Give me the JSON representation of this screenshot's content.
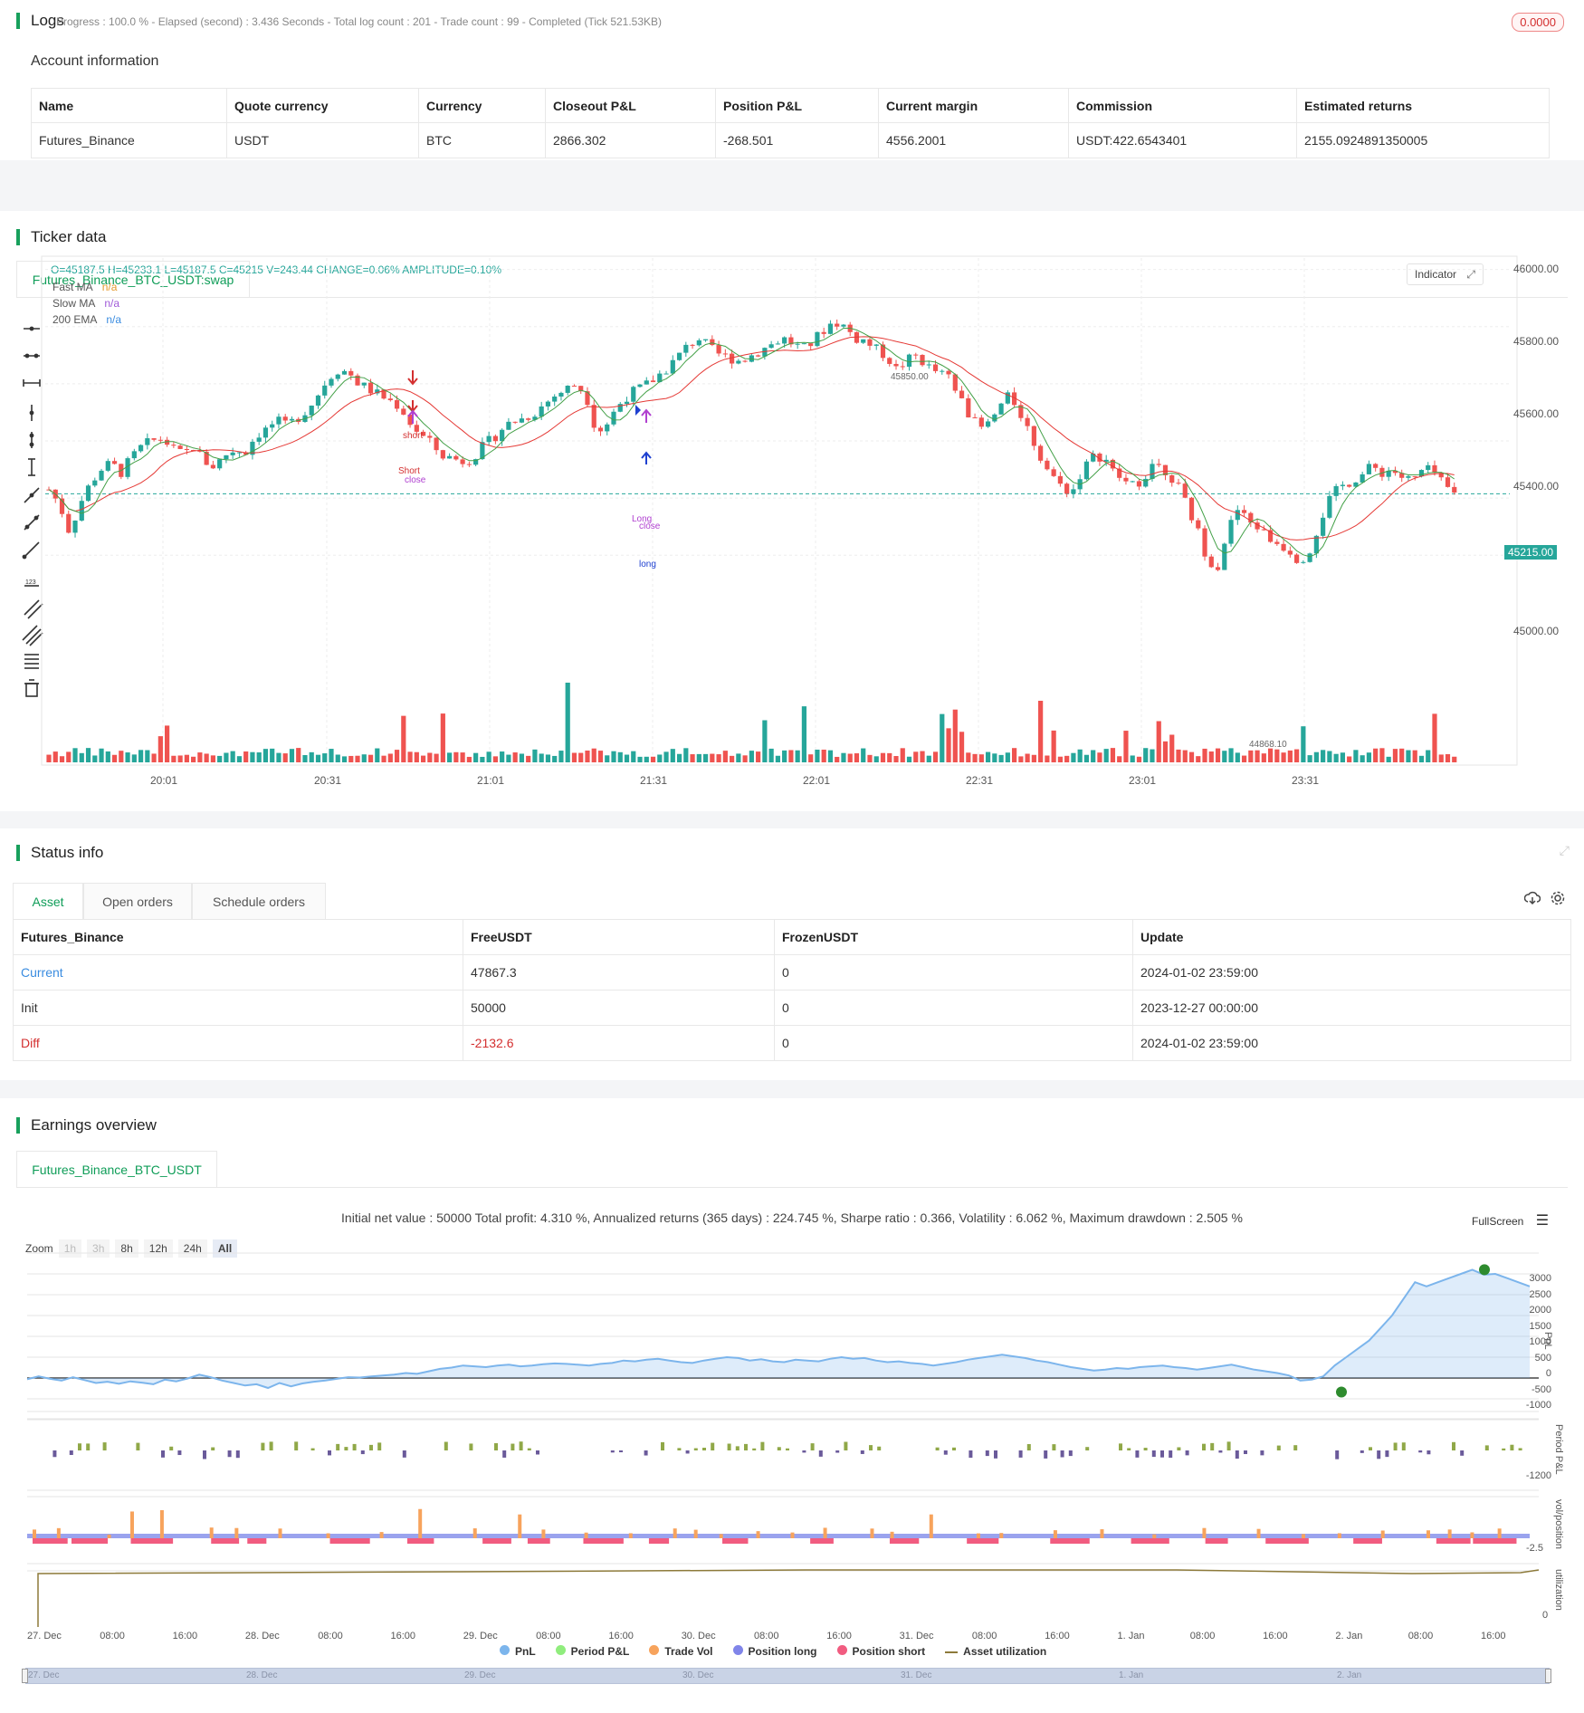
{
  "logs": {
    "title": "Logs",
    "summary": "Progress : 100.0 % - Elapsed (second) : 3.436  Seconds - Total log count : 201 - Trade count : 99 - Completed (Tick 521.53KB)",
    "badge": "0.0000",
    "account_title": "Account information",
    "columns": [
      "Name",
      "Quote currency",
      "Currency",
      "Closeout P&L",
      "Position P&L",
      "Current margin",
      "Commission",
      "Estimated returns"
    ],
    "row": [
      "Futures_Binance",
      "USDT",
      "BTC",
      "2866.302",
      "-268.501",
      "4556.2001",
      "USDT:422.6543401",
      "2155.0924891350005"
    ]
  },
  "ticker": {
    "title": "Ticker data",
    "tab": "Futures_Binance_BTC_USDT:swap",
    "ohlc": "O=45187.5 H=45233.1 L=45187.5 C=45215 V=243.44 CHANGE=0.06% AMPLITUDE=0.10%",
    "legend": [
      {
        "name": "Fast MA",
        "value": "n/a",
        "color": "#e69a2e"
      },
      {
        "name": "Slow MA",
        "value": "n/a",
        "color": "#a05ad8"
      },
      {
        "name": "200 EMA",
        "value": "n/a",
        "color": "#3a8ce0"
      }
    ],
    "indicator_btn": "Indicator",
    "price_ticks": [
      "46000.00",
      "45800.00",
      "45600.00",
      "45400.00",
      "45000.00"
    ],
    "time_ticks": [
      "20:01",
      "20:31",
      "21:01",
      "21:31",
      "22:01",
      "22:31",
      "23:01",
      "23:31"
    ],
    "last_price": "45215.00",
    "high_label": "45850.00",
    "low_label": "44868.10",
    "signals": {
      "short": "short",
      "short_close": "Short",
      "close1": "close",
      "long": "long",
      "long_close": "Long",
      "close2": "close"
    }
  },
  "chart_data": {
    "type": "candlestick",
    "ylim": [
      44760,
      46040
    ],
    "close_path": [
      45230,
      45180,
      45080,
      45180,
      45250,
      45300,
      45320,
      45290,
      45340,
      45380,
      45400,
      45410,
      45370,
      45350,
      45380,
      45330,
      45310,
      45350,
      45370,
      45360,
      45420,
      45440,
      45470,
      45450,
      45480,
      45510,
      45560,
      45620,
      45650,
      45640,
      45600,
      45580,
      45560,
      45540,
      45520,
      45460,
      45420,
      45390,
      45350,
      45340,
      45330,
      45340,
      45380,
      45410,
      45450,
      45470,
      45480,
      45500,
      45530,
      45560,
      45580,
      45600,
      45560,
      45430,
      45460,
      45520,
      45560,
      45580,
      45600,
      45630,
      45660,
      45700,
      45740,
      45760,
      45720,
      45700,
      45690,
      45680,
      45700,
      45720,
      45740,
      45760,
      45740,
      45720,
      45750,
      45790,
      45820,
      45800,
      45760,
      45750,
      45720,
      45700,
      45650,
      45680,
      45700,
      45660,
      45640,
      45620,
      45560,
      45500,
      45440,
      45460,
      45520,
      45560,
      45500,
      45420,
      45340,
      45280,
      45240,
      45220,
      45300,
      45340,
      45350,
      45290,
      45260,
      45240,
      45280,
      45320,
      45300,
      45260,
      45180,
      45100,
      45000,
      44950,
      45080,
      45160,
      45120,
      45100,
      45060,
      45040,
      45020,
      44980,
      45020,
      45120,
      45200,
      45240,
      45260,
      45280,
      45310,
      45290,
      45300,
      45270,
      45260,
      45300,
      45290,
      45240,
      45215
    ]
  },
  "status": {
    "title": "Status info",
    "tabs": [
      "Asset",
      "Open orders",
      "Schedule orders"
    ],
    "columns": [
      "Futures_Binance",
      "FreeUSDT",
      "FrozenUSDT",
      "Update"
    ],
    "rows": [
      [
        "Current",
        "47867.3",
        "0",
        "2024-01-02 23:59:00"
      ],
      [
        "Init",
        "50000",
        "0",
        "2023-12-27 00:00:00"
      ],
      [
        "Diff",
        "-2132.6",
        "0",
        "2024-01-02 23:59:00"
      ]
    ]
  },
  "earnings": {
    "title": "Earnings overview",
    "tab": "Futures_Binance_BTC_USDT",
    "summary": "Initial net value : 50000 Total profit: 4.310 %, Annualized returns (365 days) : 224.745 %, Sharpe ratio : 0.366, Volatility : 6.062 %, Maximum drawdown : 2.505 %",
    "fullscreen": "FullScreen",
    "zoom_label": "Zoom",
    "zoom_options": [
      "1h",
      "3h",
      "8h",
      "12h",
      "24h",
      "All"
    ],
    "pnl_ticks": [
      "3000",
      "2500",
      "2000",
      "1500",
      "1000",
      "500",
      "0",
      "-500",
      "-1000"
    ],
    "axis_labels": [
      "PnL",
      "Period P&L",
      "vol/position",
      "utilization"
    ],
    "period_tick": "-1200",
    "vol_tick": "-2.5",
    "util_tick": "0",
    "time_ticks": [
      "27. Dec",
      "08:00",
      "16:00",
      "28. Dec",
      "08:00",
      "16:00",
      "29. Dec",
      "08:00",
      "16:00",
      "30. Dec",
      "08:00",
      "16:00",
      "31. Dec",
      "08:00",
      "16:00",
      "1. Jan",
      "08:00",
      "16:00",
      "2. Jan",
      "08:00",
      "16:00"
    ],
    "nav_ticks": [
      "27. Dec",
      "28. Dec",
      "29. Dec",
      "30. Dec",
      "31. Dec",
      "1. Jan",
      "2. Jan"
    ],
    "legend": [
      {
        "name": "PnL",
        "color": "#7cb5ec"
      },
      {
        "name": "Period P&L",
        "color": "#90ed7d"
      },
      {
        "name": "Trade Vol",
        "color": "#f7a35c"
      },
      {
        "name": "Position long",
        "color": "#8085e9"
      },
      {
        "name": "Position short",
        "color": "#f15c80"
      },
      {
        "name": "Asset utilization",
        "color": "#8d7a3a"
      }
    ],
    "pnl_series": [
      -30,
      40,
      -20,
      -60,
      20,
      -50,
      -120,
      -90,
      -140,
      -80,
      -110,
      -150,
      -40,
      -80,
      -10,
      80,
      20,
      -60,
      -120,
      -180,
      -150,
      -240,
      -120,
      -200,
      -130,
      -90,
      -60,
      -20,
      20,
      10,
      40,
      60,
      80,
      120,
      100,
      160,
      220,
      250,
      300,
      280,
      260,
      300,
      320,
      280,
      300,
      330,
      350,
      340,
      320,
      300,
      340,
      360,
      420,
      400,
      440,
      460,
      420,
      380,
      360,
      420,
      460,
      500,
      480,
      420,
      450,
      400,
      380,
      440,
      420,
      400,
      460,
      500,
      460,
      480,
      420,
      380,
      400,
      360,
      340,
      300,
      340,
      380,
      440,
      480,
      520,
      560,
      520,
      480,
      420,
      380,
      320,
      260,
      220,
      180,
      200,
      240,
      220,
      260,
      280,
      300,
      260,
      240,
      200,
      240,
      280,
      320,
      260,
      200,
      160,
      120,
      60,
      -60,
      -40,
      40,
      300,
      500,
      700,
      900,
      1200,
      1500,
      1900,
      2300,
      2200,
      2300,
      2400,
      2500,
      2600,
      2480,
      2500,
      2400,
      2300,
      2200
    ]
  }
}
